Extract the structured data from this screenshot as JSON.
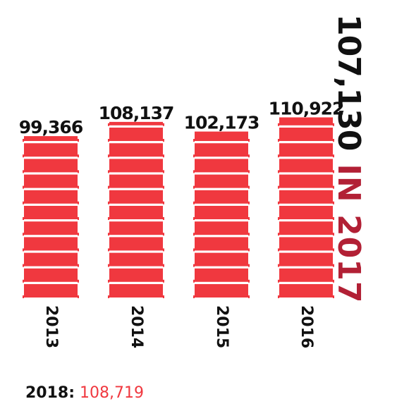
{
  "chart_data": {
    "type": "bar",
    "categories": [
      "2013",
      "2014",
      "2015",
      "2016"
    ],
    "values": [
      99366,
      108137,
      102173,
      110922
    ],
    "value_labels": [
      "99,366",
      "108,137",
      "102,173",
      "110,922"
    ],
    "bar_color": "#f0383f"
  },
  "headline": {
    "number": "107,130",
    "suffix": "IN 2017",
    "suffix_color": "#b22035"
  },
  "footnote": {
    "label": "2018:",
    "value": "108,719",
    "value_color": "#f0383f"
  }
}
